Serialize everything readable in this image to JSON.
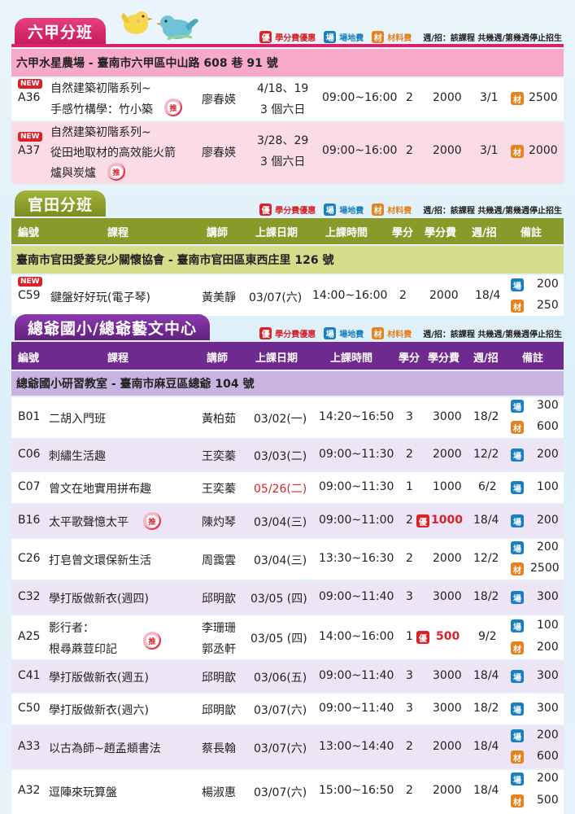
{
  "legend": {
    "discount_badge": "優",
    "discount": "學分費優惠",
    "venue_badge": "場",
    "venue": "場地費",
    "material_badge": "材",
    "material": "材料費",
    "note": "週/招：該課程 共幾週/第幾週停止招生"
  },
  "headers": [
    "編號",
    "課程",
    "講師",
    "上課日期",
    "上課時間",
    "學分",
    "學分費",
    "週/招",
    "備註"
  ],
  "sections": {
    "liujia": {
      "title": "六甲分班",
      "venue": "六甲水星農場 - 臺南市六甲區中山路 608 巷 91 號",
      "courses": [
        {
          "new": "NEW",
          "code": "A36",
          "course_line1": "自然建築初階系列~",
          "course_line2": "手感竹構學：竹小築",
          "push": "推",
          "teacher": "廖春媖",
          "date_line1": "4/18、19",
          "date_line2": "3 個六日",
          "time": "09:00~16:00",
          "credit": "2",
          "fee": "2000",
          "weeks": "3/1",
          "note_badge": "材",
          "note_value": "2500"
        },
        {
          "new": "NEW",
          "code": "A37",
          "course_line1": "自然建築初階系列~",
          "course_line2": "從田地取材的高效能火箭",
          "course_line3": "爐與炭爐",
          "push": "推",
          "teacher": "廖春媖",
          "date_line1": "3/28、29",
          "date_line2": "3 個六日",
          "time": "09:00~16:00",
          "credit": "2",
          "fee": "2000",
          "weeks": "3/1",
          "note_badge": "材",
          "note_value": "2000"
        }
      ]
    },
    "guantian": {
      "title": "官田分班",
      "venue": "臺南市官田愛菱兒少關懷協會 - 臺南市官田區東西庄里 126 號",
      "courses": [
        {
          "new": "NEW",
          "code": "C59",
          "course": "鍵盤好好玩(電子琴)",
          "teacher": "黃美靜",
          "date": "03/07(六)",
          "time": "14:00~16:00",
          "credit": "2",
          "fee": "2000",
          "weeks": "18/4",
          "note1_badge": "場",
          "note1_value": "200",
          "note2_badge": "材",
          "note2_value": "250"
        }
      ]
    },
    "zongye": {
      "title": "總爺國小/總爺藝文中心",
      "venue": "總爺國小研習教室 - 臺南市麻豆區總爺 104 號",
      "courses": [
        {
          "code": "B01",
          "course": "二胡入門班",
          "teacher": "黃柏茹",
          "date": "03/02(一)",
          "time": "14:20~16:50",
          "credit": "3",
          "fee": "3000",
          "weeks": "18/2",
          "n1b": "場",
          "n1": "300",
          "n2b": "材",
          "n2": "600"
        },
        {
          "code": "C06",
          "course": "刺繡生活趣",
          "teacher": "王奕蓁",
          "date": "03/03(二)",
          "time": "09:00~11:30",
          "credit": "2",
          "fee": "2000",
          "weeks": "12/2",
          "n1b": "場",
          "n1": "200"
        },
        {
          "code": "C07",
          "course": "曾文在地實用拼布趣",
          "teacher": "王奕蓁",
          "date": "05/26(二)",
          "time": "09:00~11:30",
          "credit": "1",
          "fee": "1000",
          "weeks": "6/2",
          "n1b": "場",
          "n1": "100"
        },
        {
          "code": "B16",
          "course": "太平歌聲憶太平",
          "push": "推",
          "teacher": "陳灼琴",
          "date": "03/04(三)",
          "time": "09:00~11:00",
          "credit": "2",
          "fee_badge": "優",
          "fee": "1000",
          "weeks": "18/4",
          "n1b": "場",
          "n1": "200"
        },
        {
          "code": "C26",
          "course": "打皂曾文環保新生活",
          "teacher": "周靄雲",
          "date": "03/04(三)",
          "time": "13:30~16:30",
          "credit": "2",
          "fee": "2000",
          "weeks": "12/2",
          "n1b": "場",
          "n1": "200",
          "n2b": "材",
          "n2": "2500"
        },
        {
          "code": "C32",
          "course": "學打版做新衣(週四)",
          "teacher": "邱明歆",
          "date": "03/05 (四)",
          "time": "09:00~11:40",
          "credit": "3",
          "fee": "3000",
          "weeks": "18/2",
          "n1b": "場",
          "n1": "300"
        },
        {
          "code": "A25",
          "course_line1": "影行者：",
          "course_line2": "根尋蔴荳印記",
          "push": "推",
          "teacher_line1": "李珊珊",
          "teacher_line2": "郭丞軒",
          "date": "03/05 (四)",
          "time": "14:00~16:00",
          "credit": "1",
          "fee_badge": "優",
          "fee": "500",
          "weeks": "9/2",
          "n1b": "場",
          "n1": "100",
          "n2b": "材",
          "n2": "200"
        },
        {
          "code": "C41",
          "course": "學打版做新衣(週五)",
          "teacher": "邱明歆",
          "date": "03/06(五)",
          "time": "09:00~11:40",
          "credit": "3",
          "fee": "3000",
          "weeks": "18/4",
          "n1b": "場",
          "n1": "300"
        },
        {
          "code": "C50",
          "course": "學打版做新衣(週六)",
          "teacher": "邱明歆",
          "date": "03/07(六)",
          "time": "09:00~11:40",
          "credit": "3",
          "fee": "3000",
          "weeks": "18/2",
          "n1b": "場",
          "n1": "300"
        },
        {
          "code": "A33",
          "course": "以古為師~趙孟頫書法",
          "teacher": "蔡長翰",
          "date": "03/07(六)",
          "time": "13:00~14:40",
          "credit": "2",
          "fee": "2000",
          "weeks": "18/4",
          "n1b": "場",
          "n1": "200",
          "n2b": "材",
          "n2": "600"
        },
        {
          "code": "A32",
          "course": "逗陣來玩算盤",
          "teacher": "楊淑惠",
          "date": "03/07(六)",
          "time": "15:00~16:50",
          "credit": "2",
          "fee": "2000",
          "weeks": "18/4",
          "n1b": "場",
          "n1": "200",
          "n2b": "材",
          "n2": "500"
        }
      ]
    }
  },
  "colors": {
    "pink_tab": "#d9236b",
    "green_tab": "#8a9a2a",
    "purple_tab": "#6e2a8f",
    "discount_red": "#d8232a",
    "venue_blue": "#1a7fc1",
    "material_orange": "#e6821f"
  }
}
